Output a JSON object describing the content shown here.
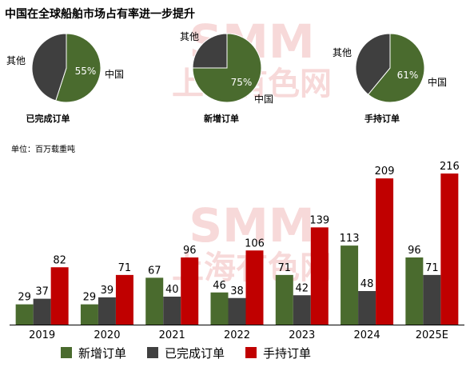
{
  "title": "中国在全球船舶市场占有率进一步提升",
  "watermark": {
    "latin": "SMM",
    "chinese": "上海有色网"
  },
  "colors": {
    "new_orders": "#4a6b2e",
    "completed": "#404040",
    "backlog": "#c00000",
    "pie_other": "#3f3f3f",
    "watermark": "#f7d9d9"
  },
  "chart_data": [
    {
      "type": "pie",
      "title": "已完成订单",
      "labels": [
        "中国",
        "其他"
      ],
      "values": [
        55,
        45
      ],
      "value_labels": [
        "55%",
        ""
      ],
      "colors": [
        "#4a6b2e",
        "#3f3f3f"
      ]
    },
    {
      "type": "pie",
      "title": "新增订单",
      "labels": [
        "中国",
        "其他"
      ],
      "values": [
        75,
        25
      ],
      "value_labels": [
        "75%",
        ""
      ],
      "colors": [
        "#4a6b2e",
        "#3f3f3f"
      ]
    },
    {
      "type": "pie",
      "title": "手持订单",
      "labels": [
        "中国",
        "其他"
      ],
      "values": [
        61,
        39
      ],
      "value_labels": [
        "61%",
        ""
      ],
      "colors": [
        "#4a6b2e",
        "#3f3f3f"
      ]
    },
    {
      "type": "bar",
      "unit_label": "单位：百万载重吨",
      "categories": [
        "2019",
        "2020",
        "2021",
        "2022",
        "2023",
        "2024",
        "2025E"
      ],
      "series": [
        {
          "name": "新增订单",
          "values": [
            29,
            29,
            67,
            46,
            71,
            113,
            96
          ],
          "color": "#4a6b2e"
        },
        {
          "name": "已完成订单",
          "values": [
            37,
            39,
            40,
            38,
            42,
            48,
            71
          ],
          "color": "#404040"
        },
        {
          "name": "手持订单",
          "values": [
            82,
            71,
            96,
            106,
            139,
            209,
            216
          ],
          "color": "#c00000"
        }
      ],
      "ylim": [
        0,
        240
      ],
      "grid": false,
      "legend_position": "bottom"
    }
  ]
}
